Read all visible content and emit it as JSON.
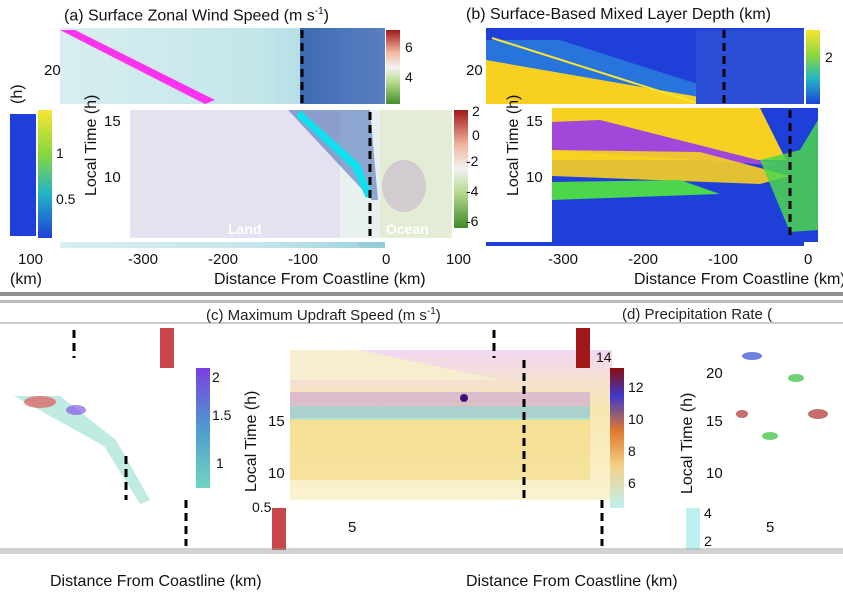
{
  "chart_data": [
    {
      "type": "heatmap",
      "panel_id": "a",
      "title": "(a) Surface Zonal Wind Speed (m s⁻¹)",
      "xlabel": "Distance From Coastline (km)",
      "ylabel": "Local Time (h)",
      "x_ticks": [
        "-300",
        "-200",
        "-100",
        "0",
        "100"
      ],
      "y_ticks": [
        "5",
        "10",
        "15",
        "20"
      ],
      "colorbar_ticks": [
        "-6",
        "-4",
        "-2",
        "0",
        "2",
        "4",
        "6"
      ],
      "annotations": [
        "Land",
        "Ocean"
      ],
      "coastline_km": -20
    },
    {
      "type": "heatmap",
      "panel_id": "b",
      "title": "(b) Surface-Based Mixed Layer Depth (km)",
      "xlabel": "Distance From Coastline (km)",
      "ylabel": "Local Time (h)",
      "x_ticks": [
        "100",
        "-300",
        "-200",
        "-100",
        "0"
      ],
      "y_ticks": [
        "5",
        "10",
        "15",
        "20"
      ],
      "colorbar_ticks": [
        "0.5",
        "1",
        "2"
      ],
      "coastline_km": -20
    },
    {
      "type": "heatmap",
      "panel_id": "c",
      "title": "(c) Maximum Updraft Speed (m s⁻¹)",
      "xlabel": "Distance From Coastline (km)",
      "ylabel": "Local Time (h)",
      "y_ticks": [
        "5",
        "10",
        "15",
        "20"
      ],
      "colorbar_ticks": [
        "2",
        "4",
        "6",
        "8",
        "10",
        "12",
        "14"
      ]
    },
    {
      "type": "heatmap",
      "panel_id": "d",
      "title": "(d) Precipitation Rate",
      "xlabel": "Distance From Coastline (km)",
      "ylabel": "Local Time (h)",
      "y_ticks": [
        "5",
        "10",
        "15",
        "20"
      ],
      "colorbar_ticks": [
        "0.5",
        "1",
        "1.5",
        "2"
      ]
    }
  ],
  "labels": {
    "title_a": "(a) Surface Zonal Wind Speed (m s",
    "title_a_sup": "-1",
    "title_a_end": ")",
    "title_b": "(b) Surface-Based Mixed Layer Depth (km)",
    "title_c": "(c) Maximum Updraft Speed (m s",
    "title_c_sup": "-1",
    "title_c_end": ")",
    "title_d": "(d) Precipitation Rate (",
    "ylabel": "Local Time (h)",
    "ylabel_short": "(h)",
    "xlabel": "Distance From Coastline (km)",
    "xlabel_short": "(km)",
    "land": "Land",
    "ocean": "Ocean",
    "x_ticks_main": [
      "-300",
      "-200",
      "-100",
      "0",
      "100"
    ],
    "x_ticks_left": [
      "100"
    ],
    "y_ticks": [
      "5",
      "10",
      "15",
      "20"
    ],
    "cb_a": [
      "6",
      "4",
      "2",
      "0",
      "-2",
      "-4",
      "-6"
    ],
    "cb_b": [
      "2",
      "1",
      "0.5"
    ],
    "cb_c": [
      "14",
      "12",
      "10",
      "8",
      "6",
      "4",
      "2"
    ],
    "cb_d": [
      "2",
      "1.5",
      "1",
      "0.5"
    ]
  },
  "colors": {
    "ocean_blue": "#1f3fd9",
    "wind_pale": "#bfe6ea",
    "wind_pink": "#ff33ee",
    "mld_yellow": "#f7d021",
    "mld_purple": "#a247d9",
    "mld_green": "#4cd64c",
    "updraft_yellow": "#f4e6a0",
    "updraft_purple": "#c08be0"
  }
}
